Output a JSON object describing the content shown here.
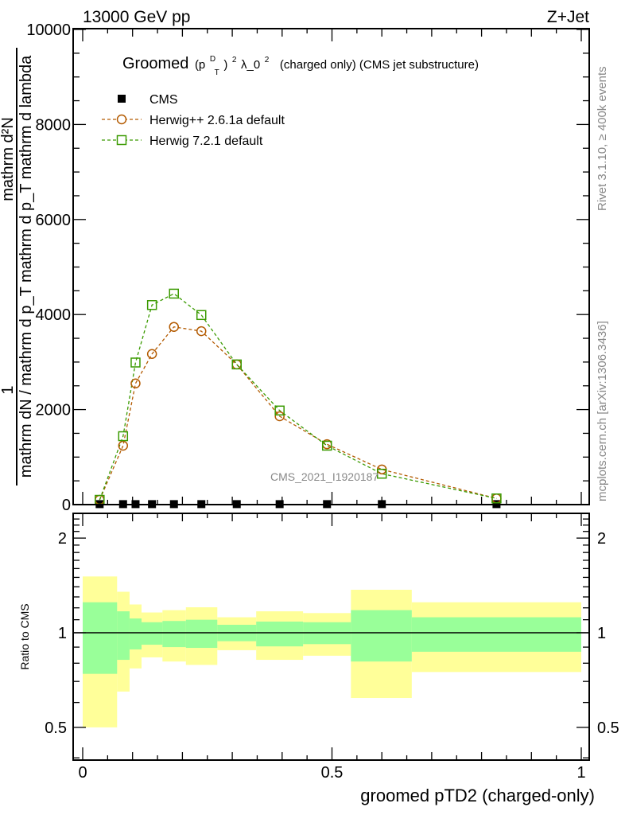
{
  "header": {
    "left": "13000 GeV pp",
    "right": "Z+Jet"
  },
  "side": {
    "rivet": "Rivet 3.1.10, ≥ 400k events",
    "mcplots": "mcplots.cern.ch [arXiv:1306.3436]"
  },
  "watermark": "CMS_2021_I1920187",
  "colors": {
    "cms": "#000000",
    "herwigpp": "#b35a00",
    "herwig7": "#3a9a00",
    "band_total": "#ffff99",
    "band_stat": "#99ff99"
  },
  "chart_data": [
    {
      "type": "line",
      "title_parts": {
        "pre": "Groomed",
        "p": "(p",
        "sup_d": "D",
        "sub_t": "T",
        "close": ")",
        "sup_2a": "2",
        "lambda": "λ_0",
        "sup_2b": "2",
        "post": "(charged only) (CMS jet substructure)"
      },
      "xlabel": "groomed pTD2 (charged-only)",
      "ylabel": {
        "num_left": "mathrm d²N",
        "one": "1",
        "right": "mathrm dN / mathrm d p_T mathrm d p_T mathrm d lambda"
      },
      "xlim": [
        0,
        1
      ],
      "ylim": [
        0,
        10000
      ],
      "x_ticks": [
        "0",
        "0.5",
        "1"
      ],
      "y_ticks": [
        "0",
        "2000",
        "4000",
        "6000",
        "8000",
        "10000"
      ],
      "legend_position": "top-left",
      "x": [
        0.034,
        0.081,
        0.106,
        0.139,
        0.183,
        0.238,
        0.309,
        0.395,
        0.49,
        0.6,
        0.83
      ],
      "series": [
        {
          "name": "CMS",
          "style": "square-filled",
          "values": [
            10,
            10,
            10,
            10,
            10,
            10,
            10,
            10,
            10,
            10,
            10
          ]
        },
        {
          "name": "Herwig++ 2.6.1a default",
          "style": "circle-dashed",
          "values": [
            100,
            1240,
            2550,
            3170,
            3740,
            3650,
            2950,
            1860,
            1270,
            740,
            130
          ]
        },
        {
          "name": "Herwig 7.2.1 default",
          "style": "square-dashed",
          "values": [
            100,
            1440,
            2990,
            4200,
            4440,
            3990,
            2950,
            1980,
            1240,
            650,
            130
          ]
        }
      ]
    },
    {
      "type": "area",
      "ylabel": "Ratio to CMS",
      "yscale": "log",
      "ylim": [
        0.39,
        2.4
      ],
      "y_ticks": [
        "0.5",
        "1",
        "2"
      ],
      "bin_edges": [
        0,
        0.069,
        0.094,
        0.118,
        0.16,
        0.207,
        0.27,
        0.348,
        0.442,
        0.538,
        0.66,
        1.0
      ],
      "band_total": {
        "upper": [
          1.51,
          1.35,
          1.23,
          1.16,
          1.18,
          1.205,
          1.12,
          1.17,
          1.155,
          1.37,
          1.25
        ],
        "lower": [
          0.5,
          0.65,
          0.77,
          0.835,
          0.81,
          0.79,
          0.88,
          0.82,
          0.845,
          0.62,
          0.75
        ]
      },
      "band_stat": {
        "upper": [
          1.25,
          1.17,
          1.11,
          1.08,
          1.09,
          1.1,
          1.06,
          1.085,
          1.08,
          1.18,
          1.12
        ],
        "lower": [
          0.74,
          0.82,
          0.885,
          0.916,
          0.9,
          0.895,
          0.94,
          0.905,
          0.92,
          0.81,
          0.87
        ]
      },
      "reference": 1
    }
  ]
}
